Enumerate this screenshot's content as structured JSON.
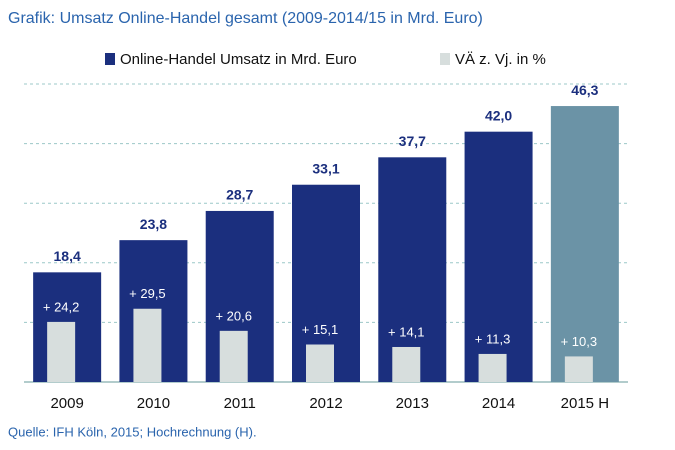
{
  "chart_data": {
    "type": "bar",
    "title": "Grafik: Umsatz Online-Handel gesamt (2009-2014/15 in Mrd. Euro)",
    "source": "Quelle: IFH Köln, 2015; Hochrechnung (H).",
    "categories": [
      "2009",
      "2010",
      "2011",
      "2012",
      "2013",
      "2014",
      "2015 H"
    ],
    "series": [
      {
        "name": "Online-Handel Umsatz in Mrd. Euro",
        "color": "#1b2f7e",
        "point_colors": [
          "#1b2f7e",
          "#1b2f7e",
          "#1b2f7e",
          "#1b2f7e",
          "#1b2f7e",
          "#1b2f7e",
          "#6b93a6"
        ],
        "values": [
          18.4,
          23.8,
          28.7,
          33.1,
          37.7,
          42.0,
          46.3
        ],
        "value_labels": [
          "18,4",
          "23,8",
          "28,7",
          "33,1",
          "37,7",
          "42,0",
          "46,3"
        ]
      },
      {
        "name": "VÄ z. Vj. in %",
        "color": "#d7dedd",
        "axis": "y2",
        "values": [
          24.2,
          29.5,
          20.6,
          15.1,
          14.1,
          11.3,
          10.3
        ],
        "value_labels": [
          "+ 24,2",
          "+ 29,5",
          "+ 20,6",
          "+ 15,1",
          "+ 14,1",
          "+ 11,3",
          "+ 10,3"
        ]
      }
    ],
    "ylim": [
      0,
      50
    ],
    "yticks": [
      0,
      10,
      20,
      30,
      40,
      50
    ],
    "y2lim": [
      0,
      120
    ],
    "grid": true
  }
}
